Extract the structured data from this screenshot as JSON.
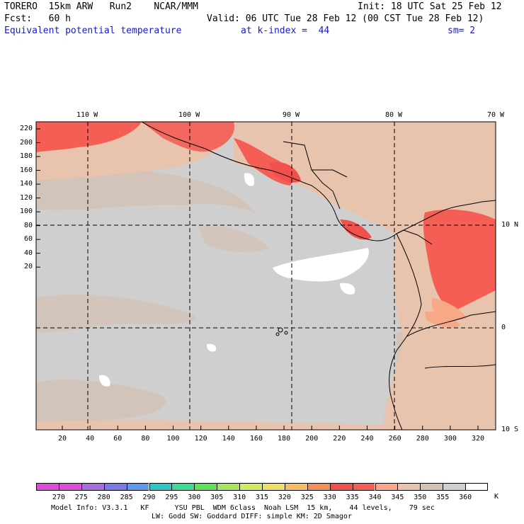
{
  "header": {
    "model": "TORERO  15km ARW   Run2    NCAR/MMM",
    "init": "Init: 18 UTC Sat 25 Feb 12",
    "fcst": "Fcst:   60 h",
    "valid": "Valid: 06 UTC Tue 28 Feb 12 (00 CST Tue 28 Feb 12)",
    "field": "Equivalent potential temperature",
    "level": "at k-index =  44",
    "smoothing": "sm= 2"
  },
  "map": {
    "lon_labels": [
      "110 W",
      "100 W",
      "90 W",
      "80 W",
      "70 W"
    ],
    "lat_labels": [
      "10 N",
      "0",
      "10 S"
    ],
    "y_ticks": [
      "220",
      "200",
      "180",
      "160",
      "140",
      "120",
      "100",
      "80",
      "60",
      "40",
      "20"
    ],
    "x_ticks": [
      "20",
      "40",
      "60",
      "80",
      "100",
      "120",
      "140",
      "160",
      "180",
      "200",
      "220",
      "240",
      "260",
      "280",
      "300",
      "320"
    ]
  },
  "colorbar": {
    "labels": [
      "270",
      "275",
      "280",
      "285",
      "290",
      "295",
      "300",
      "305",
      "310",
      "315",
      "320",
      "325",
      "330",
      "335",
      "340",
      "345",
      "350",
      "355",
      "360"
    ],
    "unit": "K",
    "colors": [
      "#d94fd9",
      "#a86fd6",
      "#7c78e6",
      "#5f9bea",
      "#2ec7c4",
      "#3ddc96",
      "#5fe05a",
      "#a7e55a",
      "#d2eb5f",
      "#f0df66",
      "#f6bd62",
      "#f58e5d",
      "#f2504d",
      "#f45e55",
      "#f7a886",
      "#e8c3ad",
      "#d3c2b6",
      "#cfcfcf",
      "#ffffff"
    ]
  },
  "footer": {
    "line1": "Model Info: V3.3.1   KF      YSU PBL  WDM 6class  Noah LSM  15 km,    44 levels,    79 sec",
    "line2": "LW: Godd SW: Goddard DIFF: simple KM: 2D Smagor"
  }
}
